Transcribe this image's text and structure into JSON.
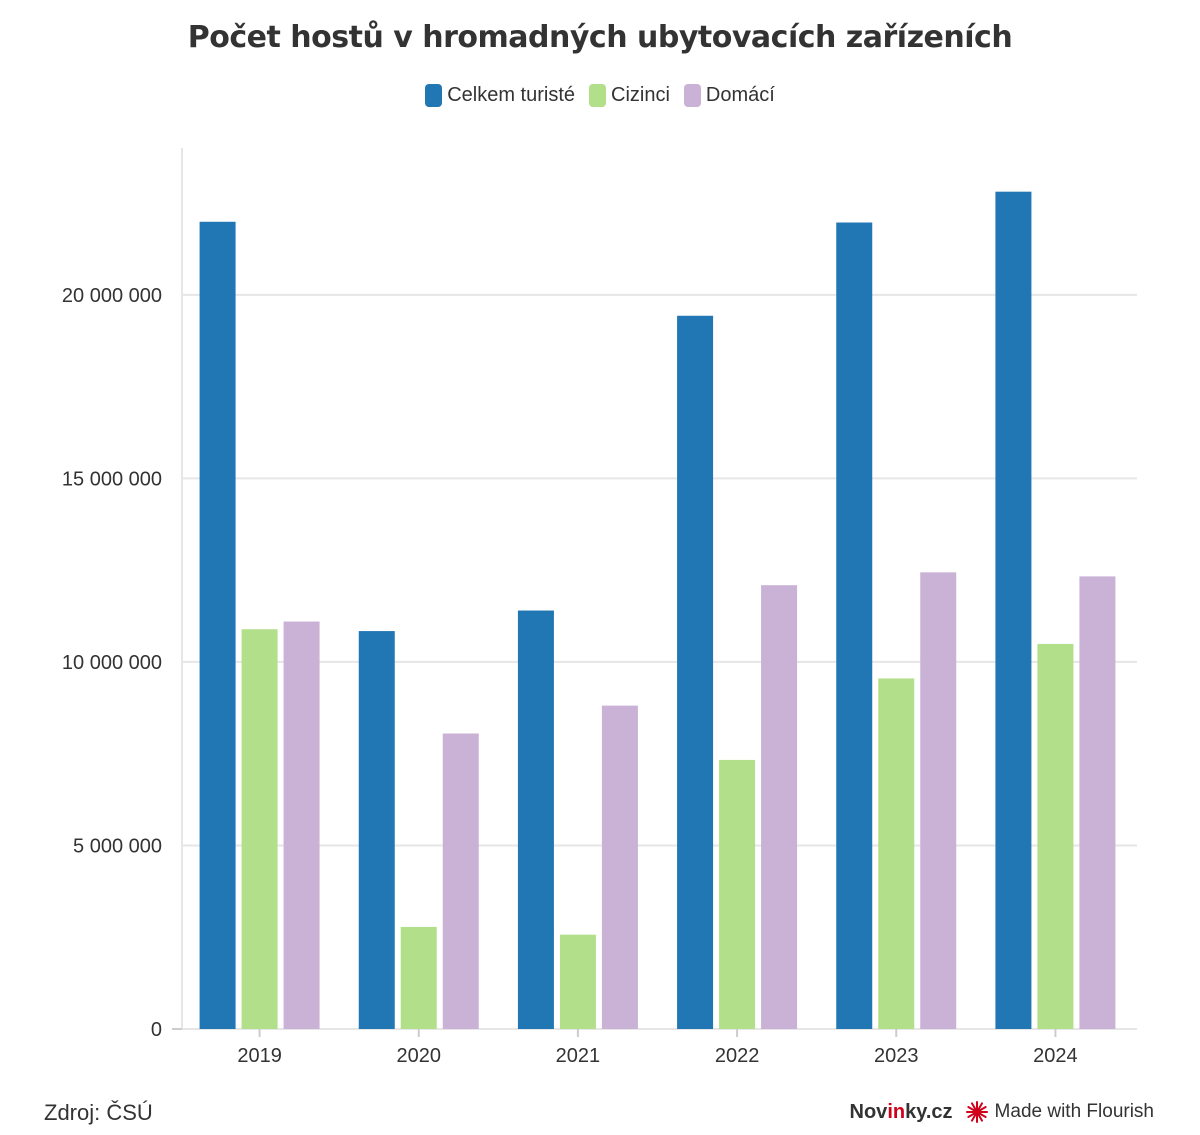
{
  "header": {
    "title": "Počet hostů v hromadných ubytovacích zařízeních"
  },
  "legend": [
    {
      "label": "Celkem turisté",
      "color": "#2077b4"
    },
    {
      "label": "Cizinci",
      "color": "#b2df8a"
    },
    {
      "label": "Domácí",
      "color": "#cab2d6"
    }
  ],
  "footer": {
    "source": "Zdroj: ČSÚ",
    "brand_prefix": "Nov",
    "brand_accent": "in",
    "brand_suffix": "ky.cz",
    "made_with": "Made with Flourish"
  },
  "chart_data": {
    "type": "bar",
    "title": "Počet hostů v hromadných ubytovacích zařízeních",
    "categories": [
      "2019",
      "2020",
      "2021",
      "2022",
      "2023",
      "2024"
    ],
    "series": [
      {
        "name": "Celkem turisté",
        "color": "#2077b4",
        "values": [
          21990000,
          10840000,
          11400000,
          19430000,
          21970000,
          22810000
        ]
      },
      {
        "name": "Cizinci",
        "color": "#b2df8a",
        "values": [
          10890000,
          2780000,
          2570000,
          7330000,
          9550000,
          10490000
        ]
      },
      {
        "name": "Domácí",
        "color": "#cab2d6",
        "values": [
          11100000,
          8050000,
          8810000,
          12090000,
          12440000,
          12330000
        ]
      }
    ],
    "y_ticks": [
      {
        "value": 0,
        "label": "0"
      },
      {
        "value": 5000000,
        "label": "5 000 000"
      },
      {
        "value": 10000000,
        "label": "10 000 000"
      },
      {
        "value": 15000000,
        "label": "15 000 000"
      },
      {
        "value": 20000000,
        "label": "20 000 000"
      }
    ],
    "ylim": [
      0,
      24000000
    ],
    "grid": true,
    "legend_position": "top-center",
    "xlabel": "",
    "ylabel": ""
  }
}
